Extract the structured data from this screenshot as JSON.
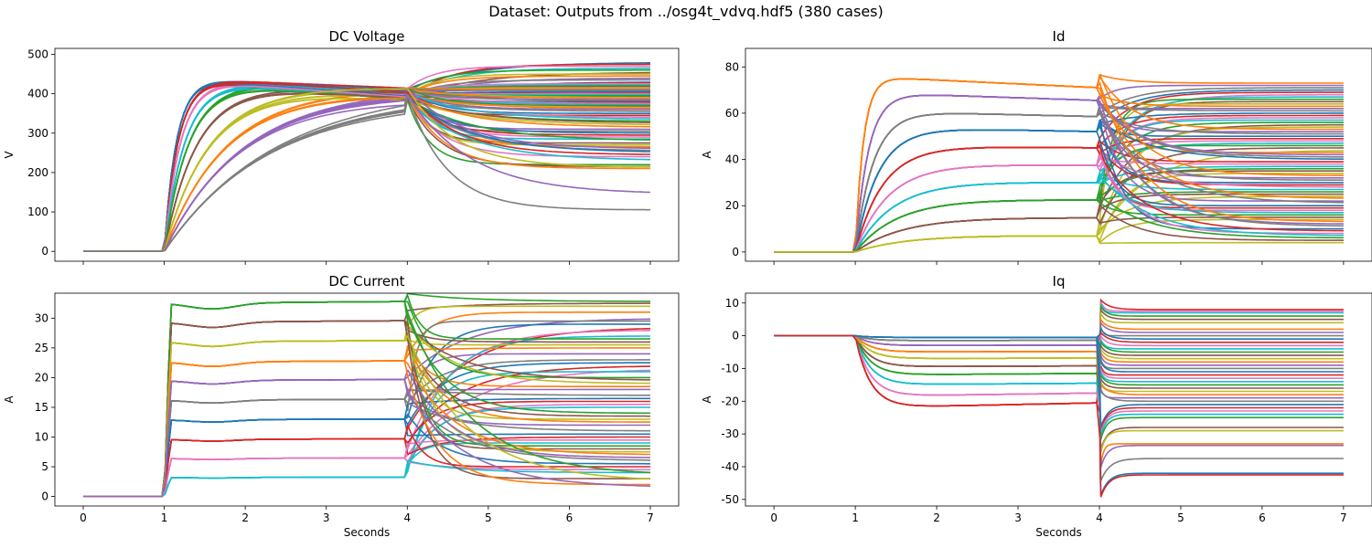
{
  "suptitle": "Dataset: Outputs from ../osg4t_vdvq.hdf5 (380 cases)",
  "palette": [
    "#1f77b4",
    "#ff7f0e",
    "#2ca02c",
    "#d62728",
    "#9467bd",
    "#8c564b",
    "#e377c2",
    "#7f7f7f",
    "#bcbd22",
    "#17becf"
  ],
  "chart_data": [
    {
      "type": "line",
      "title": "DC Voltage",
      "xlabel": "",
      "ylabel": "V",
      "xlim": [
        -0.35,
        7.35
      ],
      "ylim": [
        -25,
        515
      ],
      "xticks": [
        0,
        1,
        2,
        3,
        4,
        5,
        6,
        7
      ],
      "yticks": [
        0,
        100,
        200,
        300,
        400,
        500
      ],
      "show_xticklabels": false,
      "t_on": 1.0,
      "t_step": 4.0,
      "t_end": 7.0,
      "rise_levels": [
        440,
        440,
        437,
        435,
        432,
        428,
        420,
        415,
        405,
        395
      ],
      "rise_tau": [
        0.15,
        0.17,
        0.2,
        0.25,
        0.3,
        0.4,
        0.55,
        0.75,
        0.95,
        1.3
      ],
      "pre_step_level": 400,
      "final_values": [
        480,
        475,
        470,
        465,
        460,
        455,
        450,
        445,
        440,
        435,
        430,
        428,
        425,
        422,
        420,
        418,
        415,
        412,
        410,
        408,
        405,
        402,
        400,
        398,
        395,
        392,
        390,
        388,
        385,
        382,
        380,
        378,
        375,
        372,
        370,
        368,
        365,
        362,
        360,
        355,
        350,
        345,
        340,
        335,
        330,
        325,
        320,
        315,
        310,
        305,
        300,
        295,
        290,
        285,
        280,
        275,
        270,
        265,
        260,
        255,
        250,
        245,
        240,
        230,
        220,
        215,
        213,
        210,
        145,
        105
      ]
    },
    {
      "type": "line",
      "title": "Id",
      "xlabel": "",
      "ylabel": "A",
      "xlim": [
        -0.35,
        7.35
      ],
      "ylim": [
        -4,
        88
      ],
      "xticks": [
        0,
        1,
        2,
        3,
        4,
        5,
        6,
        7
      ],
      "yticks": [
        0,
        20,
        40,
        60,
        80
      ],
      "show_xticklabels": false,
      "t_on": 1.0,
      "t_step": 4.0,
      "t_end": 7.0,
      "pre_levels": [
        76,
        69,
        61,
        54,
        46,
        38,
        30.5,
        23,
        15,
        7.5
      ],
      "pre_end_levels": [
        71,
        65.5,
        58.5,
        52,
        45,
        37.5,
        30,
        22.5,
        14.8,
        7
      ],
      "final_values": [
        73,
        72,
        71,
        70,
        69,
        68,
        67,
        66,
        65,
        64,
        63,
        62,
        61,
        60,
        59,
        58,
        57,
        56,
        55,
        54,
        53,
        52,
        51,
        50,
        49,
        48,
        47,
        46,
        45,
        44,
        43,
        42,
        41,
        40,
        39,
        38,
        37,
        36,
        35,
        34,
        33,
        32,
        31,
        30,
        29,
        28,
        27,
        26,
        25,
        24,
        23,
        22,
        21,
        20,
        19,
        18,
        17,
        16,
        15,
        14,
        13,
        12,
        11,
        10,
        9,
        8,
        7,
        6,
        5,
        4
      ]
    },
    {
      "type": "line",
      "title": "DC Current",
      "xlabel": "Seconds",
      "ylabel": "A",
      "xlim": [
        -0.35,
        7.35
      ],
      "ylim": [
        -1.6,
        34.2
      ],
      "xticks": [
        0,
        1,
        2,
        3,
        4,
        5,
        6,
        7
      ],
      "yticks": [
        0,
        5,
        10,
        15,
        20,
        25,
        30
      ],
      "show_xticklabels": true,
      "t_on": 1.0,
      "t_step": 4.0,
      "t_end": 7.0,
      "pre_levels": [
        32.5,
        29.3,
        26,
        22.6,
        19.5,
        16.2,
        12.9,
        9.6,
        6.4,
        3.2
      ],
      "dip": [
        1.0,
        0.9,
        0.8,
        0.75,
        0.6,
        0.5,
        0.4,
        0.3,
        0.2,
        0.1
      ],
      "final_values": [
        32.8,
        32.5,
        32,
        31,
        30,
        29.5,
        29,
        28.5,
        28,
        27,
        26.5,
        26,
        25.5,
        25,
        24,
        23,
        22.5,
        22,
        21.5,
        21,
        20,
        19.5,
        19,
        18.5,
        18,
        17,
        16.5,
        16,
        15.5,
        15,
        14,
        13.5,
        13,
        12.5,
        12,
        11,
        10.5,
        10,
        9.5,
        9,
        8.5,
        8,
        7.5,
        7,
        6.5,
        6,
        5.5,
        5,
        4.5,
        4,
        3.5,
        3,
        2.5,
        2,
        1.5
      ]
    },
    {
      "type": "line",
      "title": "Iq",
      "xlabel": "Seconds",
      "ylabel": "A",
      "xlim": [
        -0.35,
        7.35
      ],
      "ylim": [
        -52,
        13
      ],
      "xticks": [
        0,
        1,
        2,
        3,
        4,
        5,
        6,
        7
      ],
      "yticks": [
        -50,
        -40,
        -30,
        -20,
        -10,
        0,
        10
      ],
      "show_xticklabels": true,
      "t_on": 1.0,
      "t_step": 4.0,
      "t_end": 7.0,
      "pre_levels": [
        -22,
        -18.5,
        -15,
        -12,
        -9.5,
        -7,
        -5,
        -3,
        -1.5,
        -0.5
      ],
      "pre_end_levels": [
        -20.5,
        -17.5,
        -14.5,
        -11.5,
        -9.2,
        -6.8,
        -4.8,
        -2.9,
        -1.4,
        -0.5
      ],
      "final_values": [
        8,
        7.5,
        7,
        6,
        5,
        4,
        2,
        1,
        0,
        -1,
        -2,
        -3,
        -4,
        -5,
        -6,
        -7,
        -8,
        -9,
        -10,
        -11,
        -12,
        -13,
        -14,
        -15,
        -16,
        -17,
        -18,
        -19,
        -20,
        -21,
        -22,
        -23,
        -24,
        -25,
        -28,
        -29,
        -33,
        -33.5,
        -37.5,
        -42,
        -42.5
      ]
    }
  ]
}
